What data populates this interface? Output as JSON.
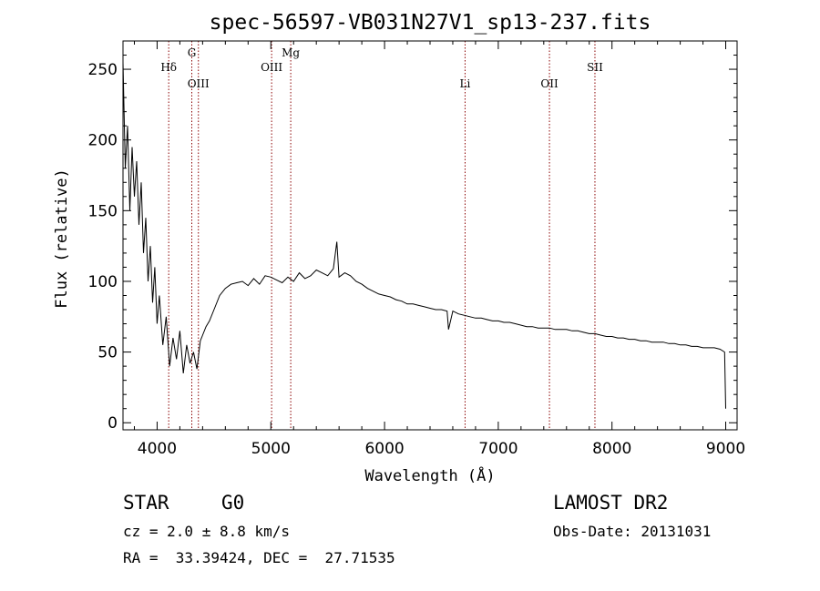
{
  "chart_data": {
    "type": "line",
    "title": "spec-56597-VB031N27V1_sp13-237.fits",
    "xlabel": "Wavelength (Å)",
    "ylabel": "Flux (relative)",
    "xlim": [
      3700,
      9100
    ],
    "ylim": [
      -5,
      270
    ],
    "x_ticks": [
      4000,
      5000,
      6000,
      7000,
      8000,
      9000
    ],
    "y_ticks": [
      0,
      50,
      100,
      150,
      200,
      250
    ],
    "line_color": "#000000",
    "marker_color": "#8b0000",
    "spectral_lines": [
      {
        "label": "Hδ",
        "wavelength": 4102,
        "level": "low"
      },
      {
        "label": "G",
        "wavelength": 4305,
        "level": "high"
      },
      {
        "label": "OIII",
        "wavelength": 4363,
        "level": "lower"
      },
      {
        "label": "OIII",
        "wavelength": 5007,
        "level": "low"
      },
      {
        "label": "Mg",
        "wavelength": 5175,
        "level": "high"
      },
      {
        "label": "Li",
        "wavelength": 6708,
        "level": "lower"
      },
      {
        "label": "OII",
        "wavelength": 7450,
        "level": "lower"
      },
      {
        "label": "SII",
        "wavelength": 7850,
        "level": "low"
      }
    ],
    "series": [
      {
        "x": [
          3700,
          3720,
          3740,
          3760,
          3780,
          3800,
          3820,
          3840,
          3860,
          3880,
          3900,
          3920,
          3940,
          3960,
          3980,
          4000,
          4020,
          4050,
          4080,
          4110,
          4140,
          4170,
          4200,
          4230,
          4260,
          4290,
          4320,
          4350,
          4380,
          4400,
          4430,
          4460,
          4500,
          4550,
          4600,
          4650,
          4700,
          4750,
          4800,
          4850,
          4900,
          4950,
          5000,
          5050,
          5100,
          5150,
          5200,
          5250,
          5300,
          5350,
          5400,
          5450,
          5500,
          5550,
          5580,
          5600,
          5650,
          5700,
          5750,
          5800,
          5850,
          5900,
          5950,
          6000,
          6050,
          6100,
          6150,
          6200,
          6250,
          6300,
          6350,
          6400,
          6450,
          6500,
          6550,
          6563,
          6600,
          6650,
          6700,
          6750,
          6800,
          6850,
          6900,
          6950,
          7000,
          7050,
          7100,
          7150,
          7200,
          7250,
          7300,
          7350,
          7400,
          7450,
          7500,
          7550,
          7600,
          7650,
          7700,
          7750,
          7800,
          7850,
          7900,
          7950,
          8000,
          8050,
          8100,
          8150,
          8200,
          8250,
          8300,
          8350,
          8400,
          8450,
          8500,
          8550,
          8600,
          8650,
          8700,
          8750,
          8800,
          8850,
          8900,
          8950,
          8990,
          9000
        ],
        "y": [
          255,
          180,
          210,
          150,
          195,
          160,
          185,
          140,
          170,
          120,
          145,
          100,
          125,
          85,
          110,
          70,
          90,
          55,
          75,
          40,
          60,
          45,
          65,
          35,
          55,
          42,
          50,
          38,
          58,
          62,
          68,
          72,
          80,
          90,
          95,
          98,
          99,
          100,
          97,
          102,
          98,
          104,
          103,
          101,
          99,
          103,
          100,
          106,
          102,
          104,
          108,
          106,
          104,
          109,
          128,
          103,
          106,
          104,
          100,
          98,
          95,
          93,
          91,
          90,
          89,
          87,
          86,
          84,
          84,
          83,
          82,
          81,
          80,
          80,
          79,
          66,
          79,
          77,
          76,
          75,
          74,
          74,
          73,
          72,
          72,
          71,
          71,
          70,
          69,
          68,
          68,
          67,
          67,
          67,
          66,
          66,
          66,
          65,
          65,
          64,
          63,
          63,
          62,
          61,
          61,
          60,
          60,
          59,
          59,
          58,
          58,
          57,
          57,
          57,
          56,
          56,
          55,
          55,
          54,
          54,
          53,
          53,
          53,
          52,
          50,
          10
        ]
      }
    ]
  },
  "info": {
    "object_class": "STAR",
    "subclass": "G0",
    "cz": "cz = 2.0 ± 8.8 km/s",
    "radec": "RA =  33.39424, DEC =  27.71535",
    "survey": "LAMOST DR2",
    "obs_date": "Obs-Date: 20131031"
  }
}
